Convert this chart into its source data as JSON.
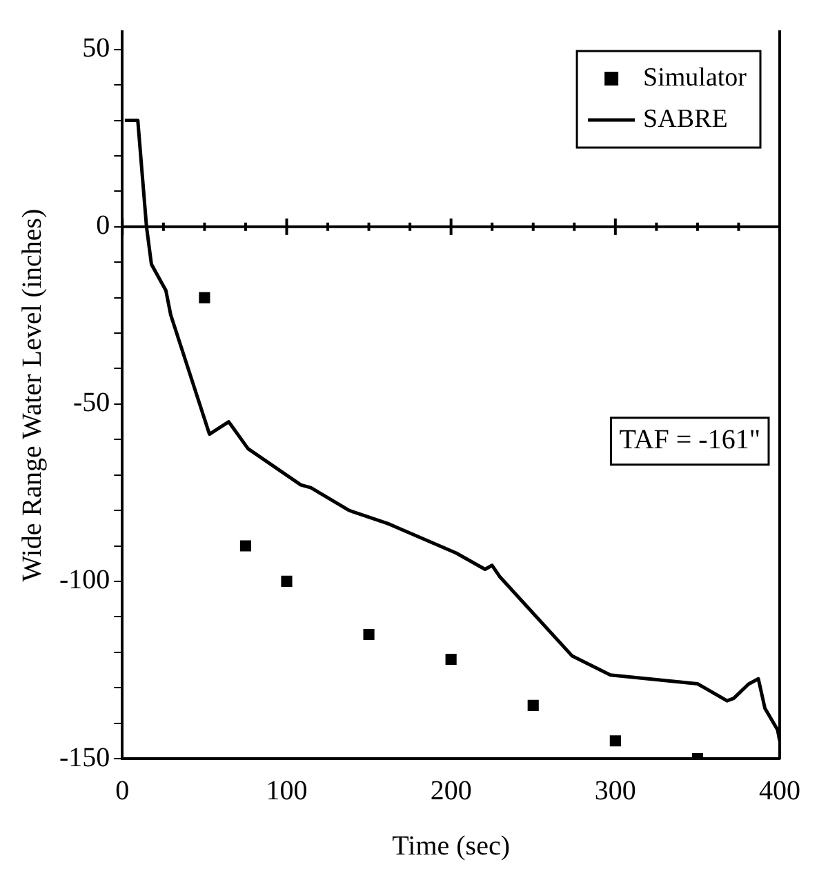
{
  "chart_data": {
    "type": "line",
    "xlabel": "Time (sec)",
    "ylabel": "Wide Range Water Level (inches)",
    "xlim": [
      0,
      400
    ],
    "ylim": [
      -150,
      55
    ],
    "xticks": [
      0,
      {
        "value": 25,
        "label": null
      },
      {
        "value": 50,
        "label": null
      },
      {
        "value": 75,
        "label": null
      },
      100,
      {
        "value": 125,
        "label": null
      },
      {
        "value": 150,
        "label": null
      },
      {
        "value": 175,
        "label": null
      },
      200,
      {
        "value": 225,
        "label": null
      },
      {
        "value": 250,
        "label": null
      },
      {
        "value": 275,
        "label": null
      },
      300,
      {
        "value": 325,
        "label": null
      },
      {
        "value": 350,
        "label": null
      },
      {
        "value": 375,
        "label": null
      },
      400
    ],
    "yticks": [
      -150,
      {
        "value": -140,
        "label": null
      },
      {
        "value": -130,
        "label": null
      },
      {
        "value": -120,
        "label": null
      },
      {
        "value": -110,
        "label": null
      },
      -100,
      {
        "value": -90,
        "label": null
      },
      {
        "value": -80,
        "label": null
      },
      {
        "value": -70,
        "label": null
      },
      {
        "value": -60,
        "label": null
      },
      -50,
      {
        "value": -40,
        "label": null
      },
      {
        "value": -30,
        "label": null
      },
      {
        "value": -20,
        "label": null
      },
      {
        "value": -10,
        "label": null
      },
      0,
      {
        "value": 10,
        "label": null
      },
      {
        "value": 20,
        "label": null
      },
      {
        "value": 30,
        "label": null
      },
      {
        "value": 40,
        "label": null
      },
      50
    ],
    "grid": false,
    "legend": "top right",
    "ref_lines": [
      {
        "axis": "y",
        "value": 0,
        "color": "#000000"
      }
    ],
    "annotations": [
      "TAF = -161\""
    ],
    "series": [
      {
        "name": "Simulator",
        "type": "scatter",
        "marker": "square",
        "color": "#000000",
        "x": [
          50,
          75,
          100,
          150,
          200,
          250,
          300,
          350
        ],
        "values": [
          -20,
          -90,
          -100,
          -115,
          -122,
          -135,
          -145,
          -150
        ]
      },
      {
        "name": "SABRE",
        "type": "line",
        "marker": "none",
        "color": "#000000",
        "x": [
          1.5,
          9.4,
          14.7,
          17.7,
          26.5,
          29.4,
          53,
          64.7,
          76.5,
          108.6,
          114.7,
          138,
          161.5,
          203,
          220.7,
          225,
          229.5,
          273.6,
          297,
          350,
          368,
          372,
          381,
          387,
          391,
          398.7,
          400
        ],
        "values": [
          30,
          30,
          0,
          -10.6,
          -18,
          -24.8,
          -58.5,
          -55,
          -62.6,
          -72.8,
          -73.6,
          -80,
          -83.7,
          -92,
          -96.6,
          -95.5,
          -98.6,
          -121,
          -126.4,
          -128.9,
          -133.7,
          -133,
          -129,
          -127.5,
          -135.8,
          -141.9,
          -145
        ]
      }
    ]
  }
}
